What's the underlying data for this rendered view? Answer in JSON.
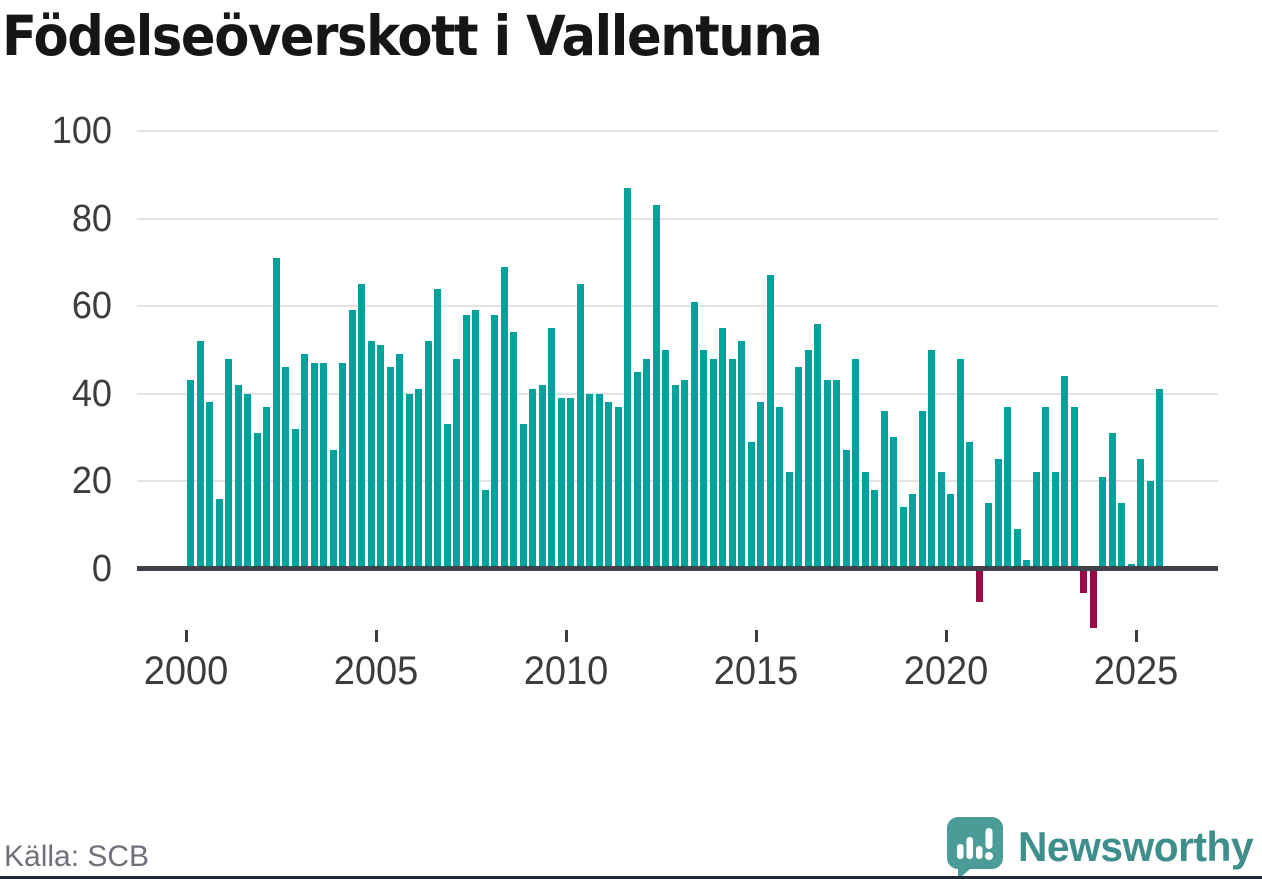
{
  "title": "Födelseöverskott i Vallentuna",
  "source": "Källa: SCB",
  "branding": {
    "wordmark": "Newsworthy"
  },
  "colors": {
    "positive": "#00a39c",
    "negative": "#9a0a44",
    "grid": "#e3e3e3",
    "axis": "#3d4348",
    "title_text": "#161616",
    "tick_text": "#3c3c3c",
    "source_text": "#70707a",
    "logo_bubble": "#4b9b97",
    "logo_glyph": "#ffffff",
    "wordmark_text": "#3e8e8c",
    "bottom_strip": "#1e2a37"
  },
  "chart_data": {
    "type": "bar",
    "title": "Födelseöverskott i Vallentuna",
    "period": "quarterly",
    "start_period": "2000-Q1",
    "end_period": "2025-Q3",
    "x_tick_labels": [
      "2000",
      "2005",
      "2010",
      "2015",
      "2020",
      "2025"
    ],
    "x_tick_years": [
      2000,
      2005,
      2010,
      2015,
      2020,
      2025
    ],
    "y_ticks": [
      0,
      20,
      40,
      60,
      80,
      100
    ],
    "ylim": [
      -15,
      100
    ],
    "grid": "horizontal",
    "legend": "none",
    "series": [
      {
        "name": "Födelseöverskott",
        "values": [
          43,
          52,
          38,
          16,
          48,
          42,
          40,
          31,
          37,
          71,
          46,
          32,
          49,
          47,
          47,
          27,
          47,
          59,
          65,
          52,
          51,
          46,
          49,
          40,
          41,
          52,
          64,
          33,
          48,
          58,
          59,
          18,
          58,
          69,
          54,
          33,
          41,
          42,
          55,
          39,
          39,
          65,
          40,
          40,
          38,
          37,
          87,
          45,
          48,
          83,
          50,
          42,
          43,
          61,
          50,
          48,
          55,
          48,
          52,
          29,
          38,
          67,
          37,
          22,
          46,
          50,
          56,
          43,
          43,
          27,
          48,
          22,
          18,
          36,
          30,
          14,
          17,
          36,
          50,
          22,
          17,
          48,
          29,
          -7,
          15,
          25,
          37,
          9,
          2,
          22,
          37,
          22,
          44,
          37,
          -5,
          -13,
          21,
          31,
          15,
          1,
          25,
          20,
          41
        ],
        "start_year": 2000,
        "quarters_per_year": 4
      }
    ]
  }
}
